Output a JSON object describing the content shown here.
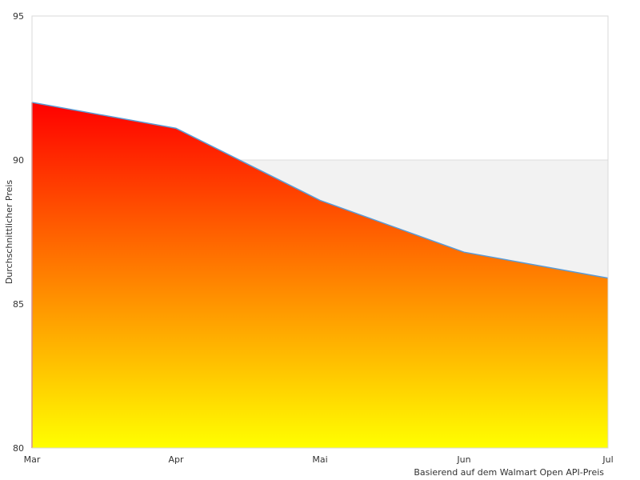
{
  "chart_data": {
    "type": "area",
    "categories": [
      "Mar",
      "Apr",
      "Mai",
      "Jun",
      "Jul"
    ],
    "values": [
      92.0,
      91.1,
      88.6,
      86.8,
      85.9
    ],
    "ylabel": "Durchschnittlicher Preis",
    "ylim": [
      80,
      95
    ],
    "yticks": [
      80,
      85,
      90,
      95
    ],
    "ytick_labels": [
      "80",
      "85",
      "90",
      "95"
    ],
    "band": [
      80,
      90
    ],
    "grid": false,
    "colors": {
      "line": "#5b9bd5",
      "fill_top": "#ff0000",
      "fill_bottom": "#ffff00",
      "band": "#f2f2f2",
      "frame": "#d9d9d9"
    }
  },
  "footnote": "Basierend auf dem Walmart Open API-Preis"
}
